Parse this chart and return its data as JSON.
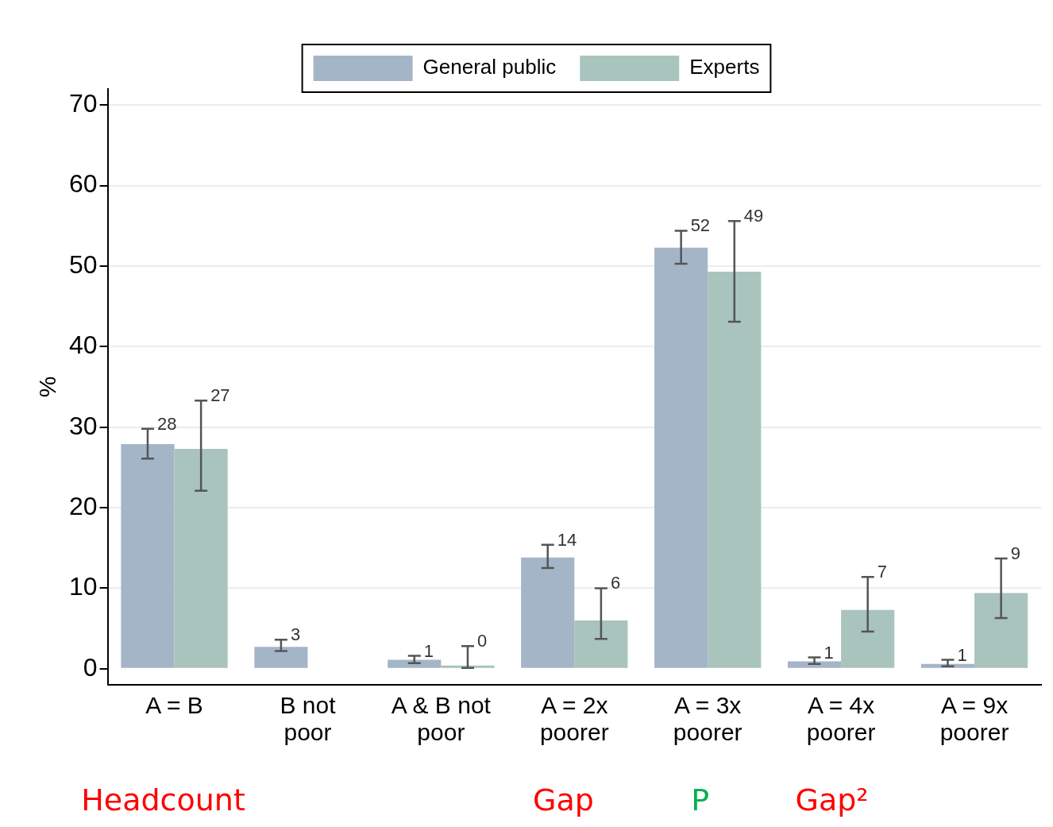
{
  "chart_data": {
    "type": "bar",
    "ylabel": "%",
    "categories": [
      "A = B",
      "B not\npoor",
      "A & B not\npoor",
      "A = 2x\npoorer",
      "A = 3x\npoorer",
      "A = 4x\npoorer",
      "A = 9x\npoorer"
    ],
    "series": [
      {
        "name": "General public",
        "color": "#a5b5c8",
        "values": [
          27.9,
          2.7,
          1.1,
          13.8,
          52.3,
          0.9,
          0.6
        ],
        "errors": [
          [
            26.1,
            29.8
          ],
          [
            2.2,
            3.6
          ],
          [
            0.7,
            1.6
          ],
          [
            12.5,
            15.4
          ],
          [
            50.3,
            54.4
          ],
          [
            0.6,
            1.4
          ],
          [
            0.3,
            1.1
          ]
        ],
        "value_labels": [
          "28",
          "3",
          "1",
          "14",
          "52",
          "1",
          "1"
        ]
      },
      {
        "name": "Experts",
        "color": "#a9c4bd",
        "values": [
          27.3,
          null,
          0.4,
          6.0,
          49.3,
          7.3,
          9.4
        ],
        "errors": [
          [
            22.1,
            33.3
          ],
          null,
          [
            0.1,
            2.8
          ],
          [
            3.7,
            10.0
          ],
          [
            43.1,
            55.6
          ],
          [
            4.6,
            11.4
          ],
          [
            6.3,
            13.7
          ]
        ],
        "value_labels": [
          "27",
          null,
          "0",
          "6",
          "49",
          "7",
          "9"
        ]
      }
    ],
    "ylim": [
      -2,
      72
    ],
    "yticks": [
      0,
      10,
      20,
      30,
      40,
      50,
      60,
      70
    ],
    "grid": "y",
    "legend": "top",
    "annotations": [
      "Headcount",
      "Gap",
      "P",
      "Gap²"
    ]
  }
}
